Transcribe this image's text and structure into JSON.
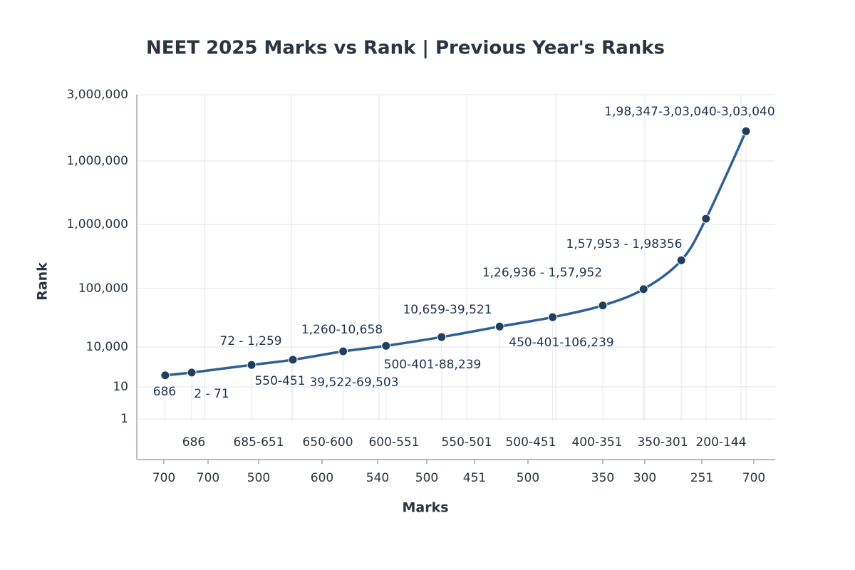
{
  "chart_data": {
    "type": "line",
    "title": "NEET 2025 Marks vs Rank | Previous Year's Ranks",
    "x_label": "Marks",
    "y_label": "Rank",
    "xlim": [
      0,
      11
    ],
    "xticks": [
      {
        "value": 0,
        "label": "700"
      },
      {
        "value": 1,
        "label": "700"
      },
      {
        "value": 2,
        "label": "500"
      },
      {
        "value": 3,
        "label": "600"
      },
      {
        "value": 4,
        "label": "540"
      },
      {
        "value": 5,
        "label": "500"
      },
      {
        "value": 6,
        "label": "451"
      },
      {
        "value": 7,
        "label": "500"
      },
      {
        "value": 8,
        "label": "350"
      },
      {
        "value": 9,
        "label": "300"
      },
      {
        "value": 10,
        "label": "251"
      },
      {
        "value": 11,
        "label": "700"
      }
    ],
    "ylim": [
      0,
      6
    ],
    "yticks": [
      {
        "value": 0,
        "label": "1"
      },
      {
        "value": 1,
        "label": "10"
      },
      {
        "value": 2,
        "label": "10,000"
      },
      {
        "value": 3,
        "label": "100,000"
      },
      {
        "value": 4,
        "label": "1,000,000"
      },
      {
        "value": 5,
        "label": "1,000,000"
      },
      {
        "value": 6,
        "label": "3,000,000"
      }
    ],
    "grid": true,
    "series": [
      {
        "color": "#2e6094",
        "x": [
          0.03,
          0.63,
          1.86,
          2.54,
          3.38,
          4.17,
          5.31,
          6.47,
          7.33,
          8.0,
          8.97,
          9.64,
          10.08,
          10.85
        ],
        "values": [
          1.29,
          1.36,
          1.55,
          1.68,
          1.89,
          2.02,
          2.17,
          2.35,
          2.51,
          2.71,
          2.99,
          3.44,
          4.09,
          5.45
        ]
      }
    ],
    "range_labels": [
      "686",
      "685-651",
      "650-600",
      "600-551",
      "550-501",
      "500-451",
      "400-351",
      "350-301",
      "200-144"
    ],
    "annotations": [
      "686",
      "2 - 71",
      "72 - 1,259",
      "550-451",
      "1,260-10,658",
      "39,522-69,503",
      "10,659-39,521",
      "500-401-88,239",
      "1,26,936 - 1,57,952",
      "450-401-106,239",
      "1,57,953 - 1,98356",
      "1,98,347-3,03,040-3,03,040"
    ]
  }
}
